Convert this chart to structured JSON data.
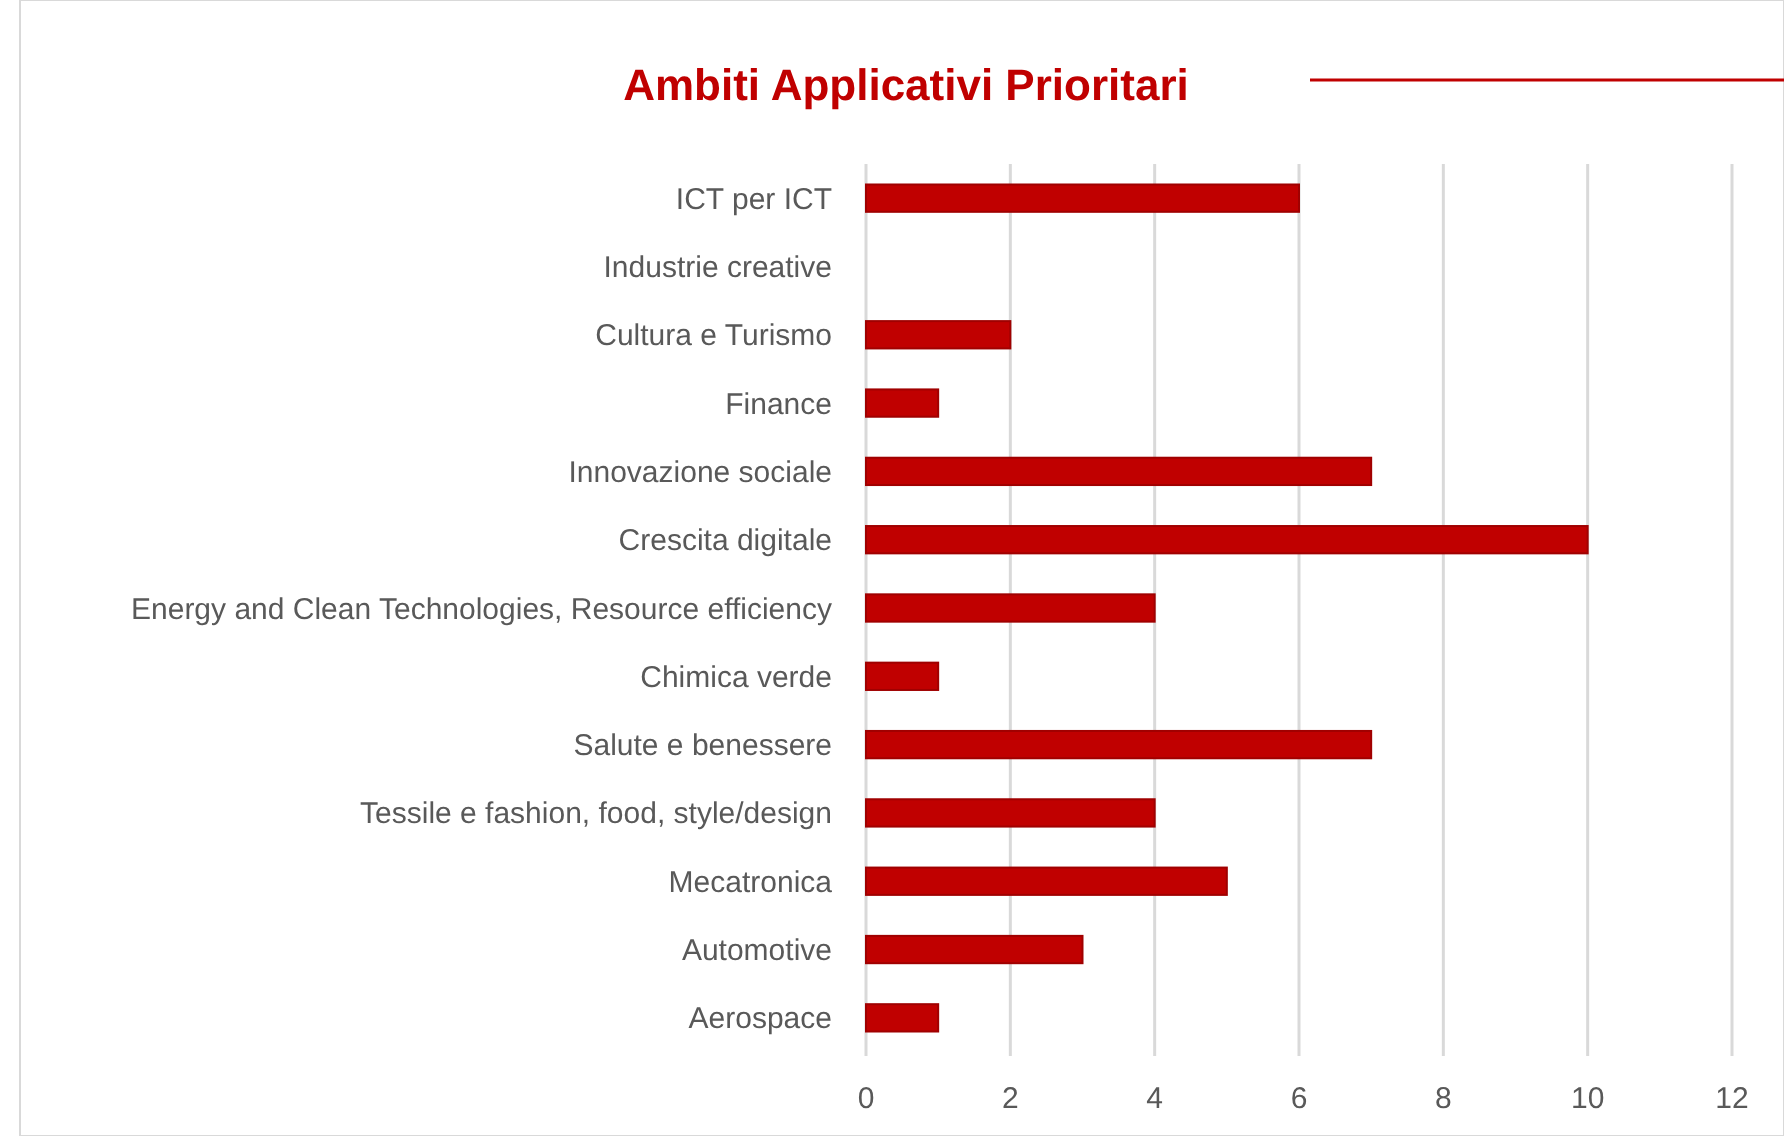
{
  "chart_data": {
    "type": "bar",
    "orientation": "horizontal",
    "title": "Ambiti Applicativi Prioritari",
    "categories": [
      "ICT per ICT",
      "Industrie creative",
      "Cultura e Turismo",
      "Finance",
      "Innovazione sociale",
      "Crescita digitale",
      "Energy and Clean Technologies, Resource efficiency",
      "Chimica verde",
      "Salute e benessere",
      "Tessile e fashion, food, style/design",
      "Mecatronica",
      "Automotive",
      "Aerospace"
    ],
    "values": [
      6,
      0,
      2,
      1,
      7,
      10,
      4,
      1,
      7,
      4,
      5,
      3,
      1
    ],
    "color": "#c00000",
    "xlim": [
      0,
      12
    ],
    "xticks": [
      0,
      2,
      4,
      6,
      8,
      10,
      12
    ],
    "grid": "x"
  }
}
